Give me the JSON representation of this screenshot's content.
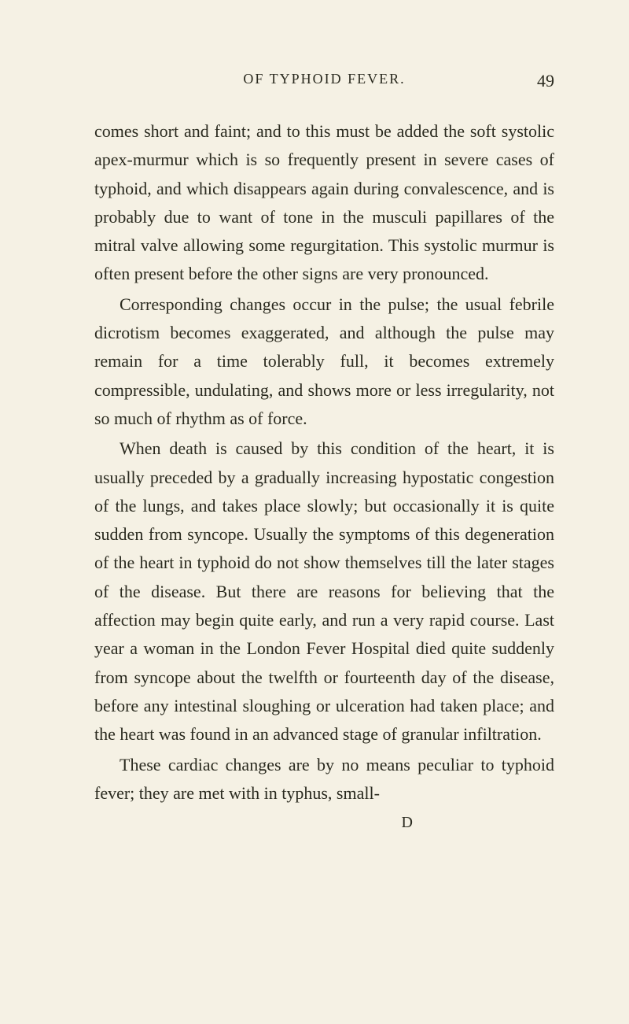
{
  "header": {
    "title": "OF TYPHOID FEVER.",
    "page_number": "49"
  },
  "paragraphs": {
    "p1": "comes short and faint; and to this must be added the soft systolic apex-murmur which is so frequently present in severe cases of typhoid, and which disappears again during convalescence, and is probably due to want of tone in the musculi papillares of the mitral valve allowing some regurgitation. This systolic murmur is often present before the other signs are very pronounced.",
    "p2": "Corresponding changes occur in the pulse; the usual febrile dicrotism becomes exaggerated, and although the pulse may remain for a time tolerably full, it becomes extremely compressible, undulating, and shows more or less irregularity, not so much of rhythm as of force.",
    "p3": "When death is caused by this condition of the heart, it is usually preceded by a gradually increasing hypostatic congestion of the lungs, and takes place slowly; but occasionally it is quite sudden from syncope. Usually the symptoms of this degeneration of the heart in typhoid do not show themselves till the later stages of the disease. But there are reasons for believing that the affection may begin quite early, and run a very rapid course. Last year a woman in the London Fever Hospital died quite suddenly from syncope about the twelfth or fourteenth day of the disease, before any intestinal sloughing or ulceration had taken place; and the heart was found in an advanced stage of granular infiltration.",
    "p4": "These cardiac changes are by no means peculiar to typhoid fever; they are met with in typhus, small-"
  },
  "signature": "D",
  "styling": {
    "background_color": "#f5f1e4",
    "text_color": "#2a2a1f",
    "body_fontsize": 22,
    "header_fontsize": 18,
    "page_number_fontsize": 22,
    "line_height": 1.65,
    "font_family": "Georgia, Times New Roman, serif"
  }
}
